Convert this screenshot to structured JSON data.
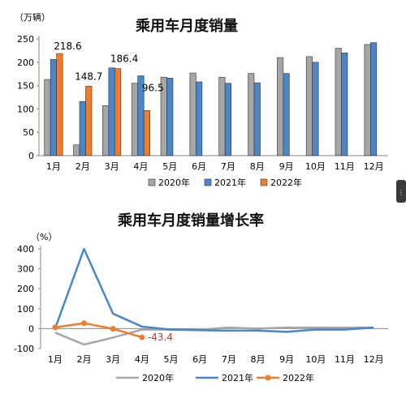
{
  "chart_data": [
    {
      "type": "bar",
      "title": "乘用车月度销量",
      "unit": "（万辆）",
      "categories": [
        "1月",
        "2月",
        "3月",
        "4月",
        "5月",
        "6月",
        "7月",
        "8月",
        "9月",
        "10月",
        "11月",
        "12月"
      ],
      "ylim": [
        0,
        250
      ],
      "yticks": [
        0,
        50,
        100,
        150,
        200,
        250
      ],
      "grid": false,
      "legend_position": "bottom",
      "series": [
        {
          "name": "2020年",
          "color": "#a6a6a6",
          "values": [
            163,
            23,
            107,
            155,
            168,
            177,
            168,
            176,
            210,
            212,
            230,
            238
          ]
        },
        {
          "name": "2021年",
          "color": "#4a86c8",
          "values": [
            206,
            116,
            188,
            171,
            166,
            158,
            155,
            156,
            176,
            200,
            220,
            242
          ]
        },
        {
          "name": "2022年",
          "color": "#ed7d31",
          "values": [
            218.6,
            148.7,
            186.4,
            96.5,
            null,
            null,
            null,
            null,
            null,
            null,
            null,
            null
          ]
        }
      ],
      "data_labels": [
        {
          "series": "2022年",
          "index": 0,
          "text": "218.6"
        },
        {
          "series": "2022年",
          "index": 1,
          "text": "148.7"
        },
        {
          "series": "2022年",
          "index": 2,
          "text": "186.4"
        },
        {
          "series": "2022年",
          "index": 3,
          "text": "96.5"
        }
      ]
    },
    {
      "type": "line",
      "title": "乘用车月度销量增长率",
      "unit": "（%）",
      "categories": [
        "1月",
        "2月",
        "3月",
        "4月",
        "5月",
        "6月",
        "7月",
        "8月",
        "9月",
        "10月",
        "11月",
        "12月"
      ],
      "ylim": [
        -100,
        400
      ],
      "yticks": [
        -100,
        0,
        100,
        200,
        300,
        400
      ],
      "grid": false,
      "legend_position": "bottom",
      "series": [
        {
          "name": "2020年",
          "color": "#a6a6a6",
          "values": [
            -20,
            -80,
            -45,
            -5,
            -5,
            -5,
            5,
            0,
            5,
            5,
            5,
            5
          ]
        },
        {
          "name": "2021年",
          "color": "#4a86c8",
          "values": [
            0,
            400,
            75,
            10,
            -5,
            -8,
            -10,
            -10,
            -16,
            -5,
            -5,
            5
          ]
        },
        {
          "name": "2022年",
          "color": "#ed7d31",
          "values": [
            6,
            27,
            -1,
            -43.4,
            null,
            null,
            null,
            null,
            null,
            null,
            null,
            null
          ]
        }
      ],
      "data_labels": [
        {
          "series": "2022年",
          "index": 3,
          "text": "-43.4"
        }
      ]
    }
  ]
}
